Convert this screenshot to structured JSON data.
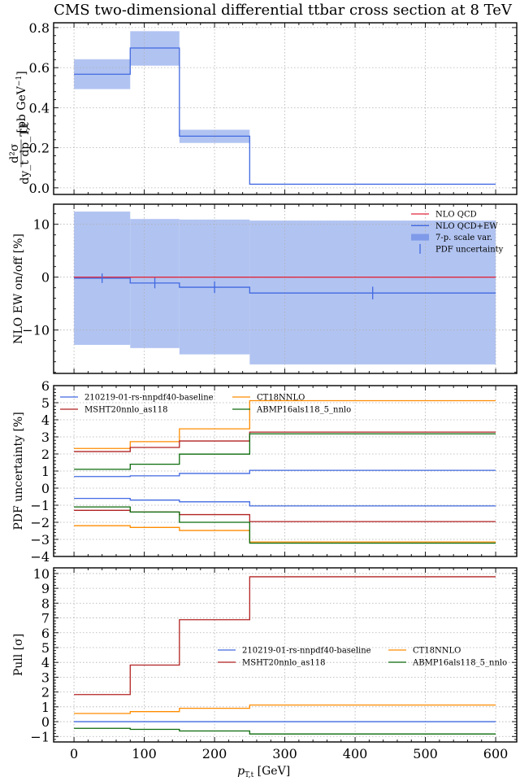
{
  "title": "CMS two-dimensional differential ttbar cross section at 8 TeV",
  "colors": {
    "blue": "#4169e1",
    "band": "#a9bcf0",
    "red_qcd": "#e0283c",
    "red": "#b22222",
    "orange": "#ff8c00",
    "green": "#0a6a0a"
  },
  "chart_data": [
    {
      "id": "xsec",
      "type": "line",
      "style": "step",
      "ylabel": "d²σ / dy_t dp_T,t [pb GeV⁻¹]",
      "ylabel_main": "[pb GeV",
      "ylabel_sup": "−1",
      "ylabel_close": "]",
      "ylabel_frac_num": "d²σ",
      "ylabel_frac_den": "dy_t dp_T,t",
      "xlim": [
        -29,
        630
      ],
      "ylim": [
        -0.033,
        0.824
      ],
      "yticks": [
        0.0,
        0.2,
        0.4,
        0.6,
        0.8
      ],
      "ytick_labels": [
        "0.0",
        "0.2",
        "0.4",
        "0.6",
        "0.8"
      ],
      "grid": true,
      "bin_edges": [
        0,
        80,
        150,
        250,
        600
      ],
      "series": [
        {
          "name": "central",
          "values": [
            0.567,
            0.698,
            0.258,
            0.018
          ],
          "color": "blue"
        }
      ],
      "bands": [
        {
          "name": "uncertainty",
          "lower": [
            0.493,
            0.61,
            0.224,
            0.018
          ],
          "upper": [
            0.642,
            0.782,
            0.29,
            0.018
          ],
          "color": "band"
        }
      ]
    },
    {
      "id": "ew",
      "type": "line",
      "style": "step",
      "ylabel": "NLO EW on/off [%]",
      "xlim": [
        -29,
        630
      ],
      "ylim": [
        -18.2,
        13.8
      ],
      "yticks": [
        -10,
        0,
        10
      ],
      "ytick_labels": [
        "−10",
        "0",
        "10"
      ],
      "grid": true,
      "bin_edges": [
        0,
        80,
        150,
        250,
        600
      ],
      "series": [
        {
          "name": "NLO QCD",
          "values": [
            0,
            0,
            0,
            0
          ],
          "color": "red_qcd"
        },
        {
          "name": "NLO QCD+EW",
          "values": [
            -0.2,
            -1.1,
            -1.9,
            -3.0
          ],
          "color": "blue"
        }
      ],
      "bands": [
        {
          "name": "7-p. scale var.",
          "lower": [
            -12.8,
            -13.4,
            -14.6,
            -16.5
          ],
          "upper": [
            12.4,
            11.0,
            10.9,
            10.7
          ],
          "color": "band"
        }
      ],
      "errorbars": {
        "name": "PDF uncertainty",
        "x": [
          40,
          115,
          200,
          425
        ],
        "y": [
          -0.2,
          -1.1,
          -1.9,
          -3.0
        ],
        "err": [
          0.9,
          1.0,
          1.1,
          1.2
        ],
        "color": "blue"
      },
      "legend": {
        "placement": "top-right",
        "entries": [
          {
            "label": "NLO QCD",
            "kind": "line",
            "color": "red_qcd"
          },
          {
            "label": "NLO QCD+EW",
            "kind": "line",
            "color": "blue"
          },
          {
            "label": "7-p. scale var.",
            "kind": "patch",
            "color": "band"
          },
          {
            "label": "PDF uncertainty",
            "kind": "errorbar",
            "color": "blue"
          }
        ]
      }
    },
    {
      "id": "pdf",
      "type": "line",
      "style": "step",
      "ylabel": "PDF uncertainty [%]",
      "xlim": [
        -29,
        630
      ],
      "ylim": [
        -4,
        6
      ],
      "yticks": [
        -4,
        -3,
        -2,
        -1,
        0,
        1,
        2,
        3,
        4,
        5,
        6
      ],
      "ytick_labels": [
        "−4",
        "−3",
        "−2",
        "−1",
        "0",
        "1",
        "2",
        "3",
        "4",
        "5",
        "6"
      ],
      "grid": true,
      "bin_edges": [
        0,
        80,
        150,
        250,
        600
      ],
      "series": [
        {
          "name": "210219-01-rs-nnpdf40-baseline (up)",
          "values": [
            0.68,
            0.72,
            0.86,
            1.04
          ],
          "color": "blue"
        },
        {
          "name": "210219-01-rs-nnpdf40-baseline (down)",
          "values": [
            -0.6,
            -0.7,
            -0.8,
            -1.04
          ],
          "color": "blue"
        },
        {
          "name": "CT18NNLO (up)",
          "values": [
            2.32,
            2.72,
            3.47,
            5.12
          ],
          "color": "orange"
        },
        {
          "name": "CT18NNLO (down)",
          "values": [
            -2.2,
            -2.3,
            -2.48,
            -3.15
          ],
          "color": "orange"
        },
        {
          "name": "MSHT20nnlo_as118 (up)",
          "values": [
            2.14,
            2.38,
            2.76,
            3.28
          ],
          "color": "red"
        },
        {
          "name": "MSHT20nnlo_as118 (down)",
          "values": [
            -1.3,
            -1.4,
            -1.55,
            -1.96
          ],
          "color": "red"
        },
        {
          "name": "ABMP16als118_5_nnlo (up)",
          "values": [
            1.1,
            1.4,
            1.99,
            3.18
          ],
          "color": "green"
        },
        {
          "name": "ABMP16als118_5_nnlo (down)",
          "values": [
            -1.1,
            -1.4,
            -2.0,
            -3.22
          ],
          "color": "green"
        }
      ],
      "legend": {
        "placement": "top-left",
        "columns": 2,
        "entries": [
          {
            "label": "210219-01-rs-nnpdf40-baseline",
            "kind": "line",
            "color": "blue"
          },
          {
            "label": "MSHT20nnlo_as118",
            "kind": "line",
            "color": "red"
          },
          {
            "label": "CT18NNLO",
            "kind": "line",
            "color": "orange"
          },
          {
            "label": "ABMP16als118_5_nnlo",
            "kind": "line",
            "color": "green"
          }
        ]
      }
    },
    {
      "id": "pull",
      "type": "line",
      "style": "step",
      "ylabel": "Pull [σ]",
      "xlabel": "p_T,t [GeV]",
      "xlabel_main": "p",
      "xlabel_sub": "T,t",
      "xlabel_unit": " [GeV]",
      "xlim": [
        -29,
        630
      ],
      "ylim": [
        -1.37,
        10.38
      ],
      "yticks": [
        -1,
        0,
        1,
        2,
        3,
        4,
        5,
        6,
        7,
        8,
        9,
        10
      ],
      "ytick_labels": [
        "−1",
        "0",
        "1",
        "2",
        "3",
        "4",
        "5",
        "6",
        "7",
        "8",
        "9",
        "10"
      ],
      "xticks": [
        0,
        100,
        200,
        300,
        400,
        500,
        600
      ],
      "xtick_labels": [
        "0",
        "100",
        "200",
        "300",
        "400",
        "500",
        "600"
      ],
      "grid": true,
      "bin_edges": [
        0,
        80,
        150,
        250,
        600
      ],
      "series": [
        {
          "name": "210219-01-rs-nnpdf40-baseline",
          "values": [
            0,
            0,
            0,
            0
          ],
          "color": "blue"
        },
        {
          "name": "MSHT20nnlo_as118",
          "values": [
            1.83,
            3.82,
            6.88,
            9.78
          ],
          "color": "red"
        },
        {
          "name": "CT18NNLO",
          "values": [
            0.55,
            0.68,
            0.9,
            1.12
          ],
          "color": "orange"
        },
        {
          "name": "ABMP16als118_5_nnlo",
          "values": [
            -0.45,
            -0.52,
            -0.63,
            -0.83
          ],
          "color": "green"
        }
      ],
      "legend": {
        "placement": "center-right",
        "columns": 2,
        "entries": [
          {
            "label": "210219-01-rs-nnpdf40-baseline",
            "kind": "line",
            "color": "blue"
          },
          {
            "label": "MSHT20nnlo_as118",
            "kind": "line",
            "color": "red"
          },
          {
            "label": "CT18NNLO",
            "kind": "line",
            "color": "orange"
          },
          {
            "label": "ABMP16als118_5_nnlo",
            "kind": "line",
            "color": "green"
          }
        ]
      }
    }
  ]
}
